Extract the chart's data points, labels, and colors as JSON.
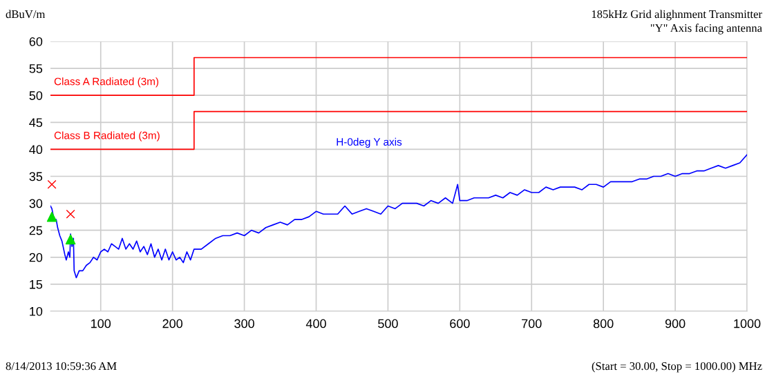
{
  "chart_data": {
    "type": "line",
    "title": "185kHz Grid alighnment Transmitter",
    "subtitle": "\"Y\" Axis facing antenna",
    "ylabel": "dBuV/m",
    "annotations": [
      "8/14/2013 10:59:36 AM",
      "(Start = 30.00, Stop = 1000.00) MHz"
    ],
    "xlim": [
      30,
      1000
    ],
    "ylim": [
      10,
      60
    ],
    "xticks": [
      100,
      200,
      300,
      400,
      500,
      600,
      700,
      800,
      900,
      1000
    ],
    "yticks": [
      10,
      15,
      20,
      25,
      30,
      35,
      40,
      45,
      50,
      55,
      60
    ],
    "grid": true,
    "legend": false,
    "series": [
      {
        "name": "Class A Radiated (3m)",
        "color": "#ff0000",
        "x": [
          30,
          230,
          230,
          1000
        ],
        "values": [
          50,
          50,
          57,
          57
        ]
      },
      {
        "name": "Class B Radiated (3m)",
        "color": "#ff0000",
        "x": [
          30,
          230,
          230,
          1000
        ],
        "values": [
          40,
          40,
          47,
          47
        ]
      },
      {
        "name": "H-0deg Y axis",
        "color": "#0000ff",
        "x": [
          30,
          32,
          35,
          38,
          40,
          43,
          46,
          50,
          52,
          55,
          57,
          58,
          60,
          62,
          63,
          66,
          70,
          75,
          80,
          85,
          90,
          95,
          100,
          105,
          110,
          115,
          120,
          125,
          130,
          135,
          140,
          145,
          150,
          155,
          160,
          165,
          170,
          175,
          180,
          185,
          190,
          195,
          200,
          205,
          210,
          215,
          220,
          225,
          230,
          240,
          250,
          260,
          270,
          280,
          290,
          300,
          310,
          320,
          330,
          340,
          350,
          360,
          370,
          380,
          390,
          400,
          410,
          420,
          430,
          440,
          450,
          460,
          470,
          480,
          490,
          500,
          510,
          520,
          530,
          540,
          550,
          560,
          570,
          580,
          590,
          597,
          600,
          610,
          620,
          630,
          640,
          650,
          660,
          670,
          680,
          690,
          700,
          710,
          720,
          730,
          740,
          750,
          760,
          770,
          780,
          790,
          800,
          810,
          820,
          830,
          840,
          850,
          860,
          870,
          880,
          890,
          900,
          910,
          920,
          930,
          940,
          950,
          960,
          970,
          980,
          990,
          1000
        ],
        "values": [
          29.5,
          29,
          27,
          27,
          25.5,
          24,
          23,
          20.5,
          19.5,
          21,
          20,
          24.3,
          22,
          23.5,
          17.5,
          16.2,
          17.5,
          17.5,
          18.5,
          19,
          20,
          19.5,
          21,
          21.5,
          21,
          22.5,
          22,
          21.5,
          23.5,
          21.5,
          22.5,
          21.5,
          23,
          21,
          22,
          20.5,
          22.5,
          20,
          21.5,
          19.5,
          21.5,
          19.5,
          21,
          19.5,
          20,
          19,
          21,
          19.5,
          21.5,
          21.5,
          22.5,
          23.5,
          24,
          24,
          24.5,
          24,
          25,
          24.5,
          25.5,
          26,
          26.5,
          26,
          27,
          27,
          27.5,
          28.5,
          28,
          28,
          28,
          29.5,
          28,
          28.5,
          29,
          28.5,
          28,
          29.5,
          29,
          30,
          30,
          30,
          29.5,
          30.5,
          30,
          31,
          30,
          33.5,
          30.5,
          30.5,
          31,
          31,
          31,
          31.5,
          31,
          32,
          31.5,
          32.5,
          32,
          32,
          33,
          32.5,
          33,
          33,
          33,
          32.5,
          33.5,
          33.5,
          33,
          34,
          34,
          34,
          34,
          34.5,
          34.5,
          35,
          35,
          35.5,
          35,
          35.5,
          35.5,
          36,
          36,
          36.5,
          37,
          36.5,
          37,
          37.5,
          39
        ]
      },
      {
        "type": "scatter",
        "marker": "cross",
        "color": "#ff0000",
        "x": [
          32,
          58
        ],
        "values": [
          33.5,
          28
        ]
      },
      {
        "type": "scatter",
        "marker": "triangle",
        "color": "#00dd00",
        "x": [
          32,
          58
        ],
        "values": [
          27.5,
          23.3
        ]
      }
    ]
  }
}
